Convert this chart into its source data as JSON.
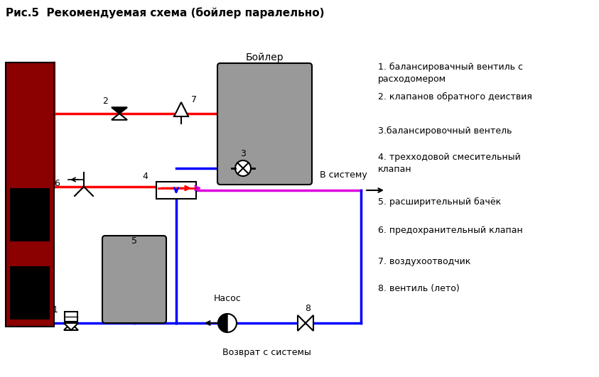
{
  "title": "Рис.5  Рекомендуемая схема (бойлер паралельно)",
  "title_fontsize": 11,
  "legend_items": [
    "1. балансировачный вентиль с\nрасходомером",
    "2. клапанов обратного деиствия",
    "3.балансировочный вентель",
    "4. трехходовой смесительный\nклапан",
    "5. расширительный бачёк",
    "6. предохранительный клапан",
    "7. воздухоотводчик",
    "8. вентиль (лето)"
  ],
  "colors": {
    "red": "#ff0000",
    "blue": "#0000ff",
    "magenta": "#dd00dd",
    "dark_red": "#8b0000",
    "gray": "#999999",
    "black": "#000000",
    "white": "#ffffff"
  },
  "boiler_label": "Бойлер",
  "system_label": "В систему",
  "return_label": "Возврат с системы",
  "pump_label": "Насос",
  "figsize": [
    8.43,
    5.31
  ],
  "dpi": 100,
  "xlim": [
    0,
    843
  ],
  "ylim": [
    0,
    531
  ]
}
